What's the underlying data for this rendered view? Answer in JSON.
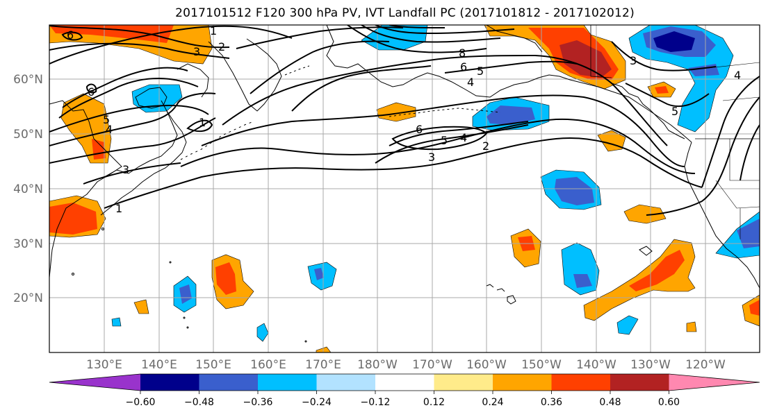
{
  "title": "2017101512 F120 300 hPa PV, IVT Landfall PC (2017101812 - 2017102012)",
  "map": {
    "lat_labels": [
      "60°N",
      "50°N",
      "40°N",
      "30°N",
      "20°N"
    ],
    "lon_labels": [
      "130°E",
      "140°E",
      "150°E",
      "160°E",
      "170°E",
      "180°W",
      "170°W",
      "160°W",
      "150°W",
      "140°W",
      "130°W",
      "120°W"
    ],
    "contour_labels": [
      "6",
      "2",
      "3",
      "1",
      "6",
      "5",
      "4",
      "1",
      "3",
      "1",
      "8",
      "6",
      "5",
      "4",
      "6",
      "5",
      "4",
      "3",
      "2",
      "3",
      "4",
      "5"
    ]
  },
  "colorbar": {
    "ticks": [
      "−0.60",
      "−0.48",
      "−0.36",
      "−0.24",
      "−0.12",
      "0.12",
      "0.24",
      "0.36",
      "0.48",
      "0.60"
    ],
    "colors": [
      "#9933cc",
      "#00008b",
      "#3a5fcd",
      "#00bfff",
      "#b2e2ff",
      "#ffffff",
      "#ffeb8a",
      "#ffa500",
      "#ff4000",
      "#b22222",
      "#ff88b0"
    ]
  }
}
